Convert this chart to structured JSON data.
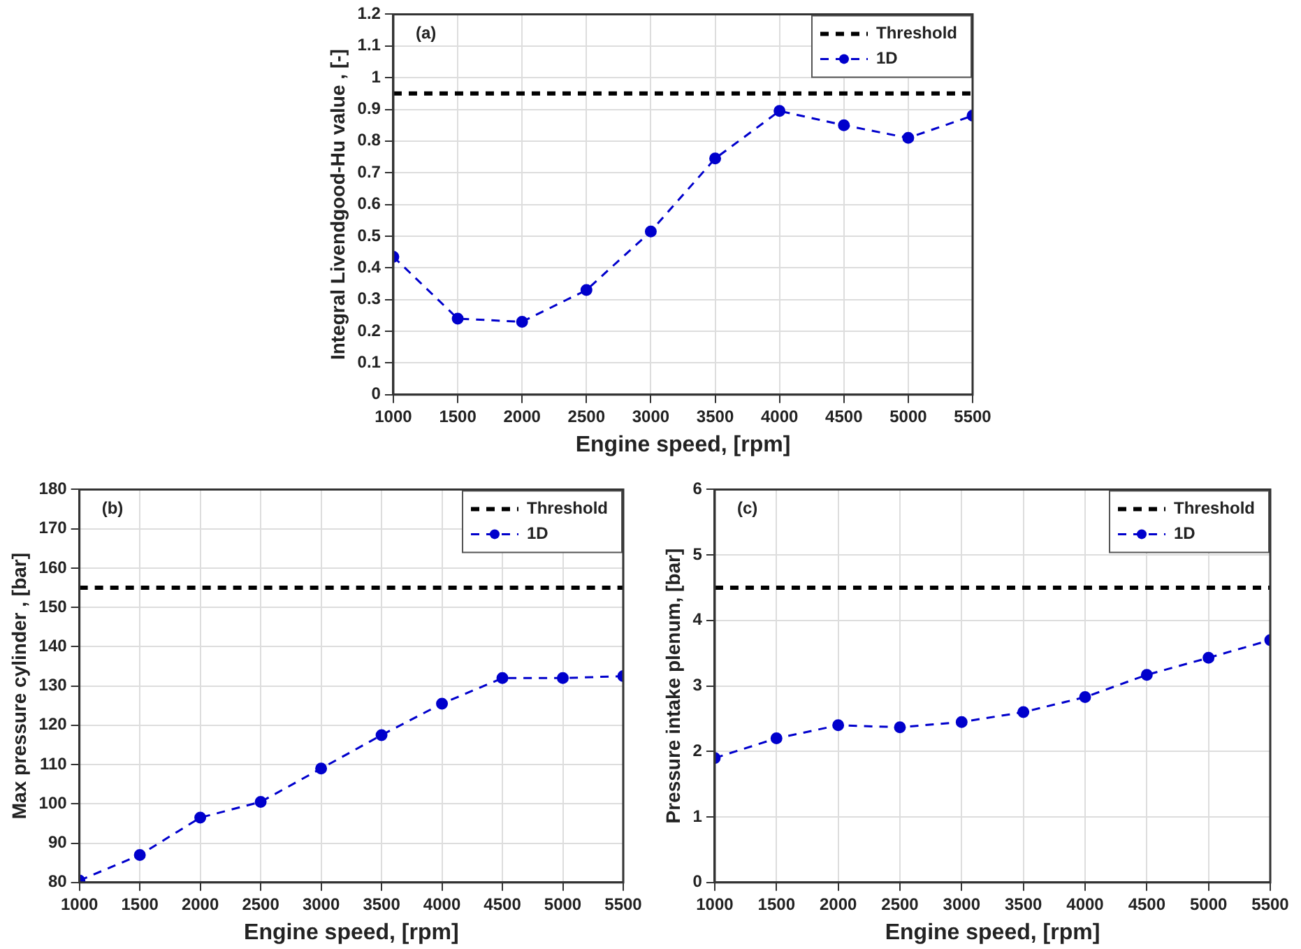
{
  "chart_data": [
    {
      "type": "line",
      "xlabel": "Engine speed, [rpm]",
      "ylabel": "Integral Livendgood-Hu value , [-]",
      "annotations": [
        "(a)"
      ],
      "x": [
        1000,
        1500,
        2000,
        2500,
        3000,
        3500,
        4000,
        4500,
        5000,
        5500
      ],
      "xlim": [
        1000,
        5500
      ],
      "xticks": [
        1000,
        1500,
        2000,
        2500,
        3000,
        3500,
        4000,
        4500,
        5000,
        5500
      ],
      "ylim": [
        0,
        1.2
      ],
      "yticks": [
        0,
        0.1,
        0.2,
        0.3,
        0.4,
        0.5,
        0.6,
        0.7,
        0.8,
        0.9,
        1,
        1.1,
        1.2
      ],
      "grid": true,
      "legend": "top right",
      "ref_lines": [
        {
          "axis": "y",
          "value": 0.95,
          "label": "Threshold",
          "color": "#000000",
          "line_style": "dashed"
        }
      ],
      "series": [
        {
          "name": "1D",
          "values": [
            0.435,
            0.24,
            0.23,
            0.33,
            0.515,
            0.745,
            0.895,
            0.85,
            0.81,
            0.88
          ],
          "color": "#0000cc",
          "line_style": "dashed",
          "marker": "circle"
        }
      ]
    },
    {
      "type": "line",
      "xlabel": "Engine speed, [rpm]",
      "ylabel": "Max pressure cylinder , [bar]",
      "annotations": [
        "(b)"
      ],
      "x": [
        1000,
        1500,
        2000,
        2500,
        3000,
        3500,
        4000,
        4500,
        5000,
        5500
      ],
      "xlim": [
        1000,
        5500
      ],
      "xticks": [
        1000,
        1500,
        2000,
        2500,
        3000,
        3500,
        4000,
        4500,
        5000,
        5500
      ],
      "ylim": [
        80,
        180
      ],
      "yticks": [
        80,
        90,
        100,
        110,
        120,
        130,
        140,
        150,
        160,
        170,
        180
      ],
      "grid": true,
      "legend": "top right",
      "ref_lines": [
        {
          "axis": "y",
          "value": 155,
          "label": "Threshold",
          "color": "#000000",
          "line_style": "dashed"
        }
      ],
      "series": [
        {
          "name": "1D",
          "values": [
            80.5,
            87,
            96.5,
            100.5,
            109,
            117.5,
            125.5,
            132,
            132,
            132.5
          ],
          "color": "#0000cc",
          "line_style": "dashed",
          "marker": "circle"
        }
      ]
    },
    {
      "type": "line",
      "xlabel": "Engine speed, [rpm]",
      "ylabel": "Pressure intake plenum, [bar]",
      "annotations": [
        "(c)"
      ],
      "x": [
        1000,
        1500,
        2000,
        2500,
        3000,
        3500,
        4000,
        4500,
        5000,
        5500
      ],
      "xlim": [
        1000,
        5500
      ],
      "xticks": [
        1000,
        1500,
        2000,
        2500,
        3000,
        3500,
        4000,
        4500,
        5000,
        5500
      ],
      "ylim": [
        0,
        6
      ],
      "yticks": [
        0,
        1,
        2,
        3,
        4,
        5,
        6
      ],
      "grid": true,
      "legend": "top right",
      "ref_lines": [
        {
          "axis": "y",
          "value": 4.5,
          "label": "Threshold",
          "color": "#000000",
          "line_style": "dashed"
        }
      ],
      "series": [
        {
          "name": "1D",
          "values": [
            1.9,
            2.2,
            2.4,
            2.37,
            2.45,
            2.6,
            2.83,
            3.17,
            3.43,
            3.7
          ],
          "color": "#0000cc",
          "line_style": "dashed",
          "marker": "circle"
        }
      ]
    }
  ]
}
